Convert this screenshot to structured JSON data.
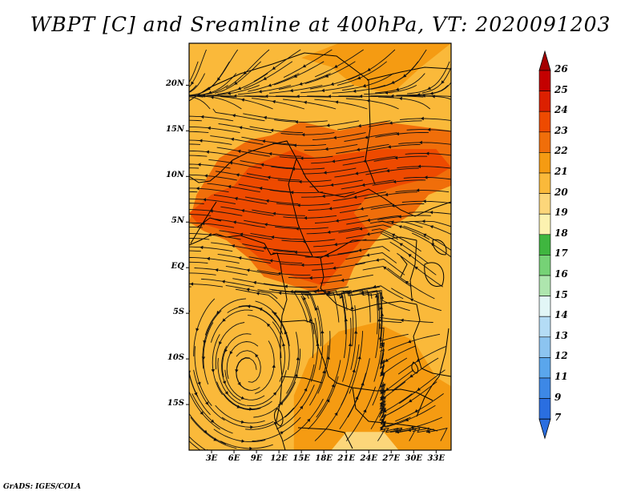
{
  "title": "WBPT [C] and Sreamline at 400hPa, VT: 2020091203",
  "credit": "GrADS: IGES/COLA",
  "axes": {
    "y_ticks": [
      {
        "label": "20N",
        "lat": 20
      },
      {
        "label": "15N",
        "lat": 15
      },
      {
        "label": "10N",
        "lat": 10
      },
      {
        "label": "5N",
        "lat": 5
      },
      {
        "label": "EQ",
        "lat": 0
      },
      {
        "label": "5S",
        "lat": -5
      },
      {
        "label": "10S",
        "lat": -10
      },
      {
        "label": "15S",
        "lat": -15
      }
    ],
    "x_ticks": [
      {
        "label": "3E",
        "lon": 3
      },
      {
        "label": "6E",
        "lon": 6
      },
      {
        "label": "9E",
        "lon": 9
      },
      {
        "label": "12E",
        "lon": 12
      },
      {
        "label": "15E",
        "lon": 15
      },
      {
        "label": "18E",
        "lon": 18
      },
      {
        "label": "21E",
        "lon": 21
      },
      {
        "label": "24E",
        "lon": 24
      },
      {
        "label": "27E",
        "lon": 27
      },
      {
        "label": "30E",
        "lon": 30
      },
      {
        "label": "33E",
        "lon": 33
      }
    ],
    "lon_range": [
      0,
      35
    ],
    "lat_range": [
      -20,
      24.6
    ]
  },
  "colorbar": {
    "levels": [
      {
        "label": "26",
        "color": "#a50000"
      },
      {
        "label": "25",
        "color": "#c40000"
      },
      {
        "label": "24",
        "color": "#dc2000"
      },
      {
        "label": "23",
        "color": "#ee4a00"
      },
      {
        "label": "22",
        "color": "#f06e0a"
      },
      {
        "label": "21",
        "color": "#f59b12"
      },
      {
        "label": "20",
        "color": "#fab93a"
      },
      {
        "label": "19",
        "color": "#fcd67a"
      },
      {
        "label": "18",
        "color": "#fcf2b0"
      },
      {
        "label": "17",
        "color": "#3fb63f"
      },
      {
        "label": "16",
        "color": "#76d276"
      },
      {
        "label": "15",
        "color": "#aee6ae"
      },
      {
        "label": "14",
        "color": "#e2f6f6"
      },
      {
        "label": "13",
        "color": "#b4dcf5"
      },
      {
        "label": "12",
        "color": "#8cc4f0"
      },
      {
        "label": "11",
        "color": "#5aa6ec"
      },
      {
        "label": "9",
        "color": "#3d88e6"
      },
      {
        "label": "7",
        "color": "#2a6ee0"
      }
    ],
    "bottom_color": "#2a6ee0"
  },
  "field": {
    "base_color": "#fab93a",
    "regions": [
      {
        "value": 22,
        "color": "#f06e0a",
        "polygon": [
          [
            1,
            8
          ],
          [
            4,
            12
          ],
          [
            8,
            14
          ],
          [
            11,
            14.5
          ],
          [
            15,
            16
          ],
          [
            20,
            15
          ],
          [
            26,
            16
          ],
          [
            35,
            15
          ],
          [
            35,
            9
          ],
          [
            32,
            8
          ],
          [
            30,
            6
          ],
          [
            26,
            4
          ],
          [
            24,
            2
          ],
          [
            22,
            0
          ],
          [
            21,
            -2
          ],
          [
            18,
            -3
          ],
          [
            14,
            -2
          ],
          [
            10,
            -1
          ],
          [
            8,
            1
          ],
          [
            5,
            3
          ],
          [
            2,
            4
          ],
          [
            0,
            5
          ]
        ]
      },
      {
        "value": 23,
        "color": "#ee4a00",
        "polygon": [
          [
            8,
            11
          ],
          [
            11,
            12
          ],
          [
            14,
            13
          ],
          [
            17,
            12
          ],
          [
            21,
            12.5
          ],
          [
            26,
            13
          ],
          [
            33,
            13
          ],
          [
            35,
            11
          ],
          [
            33,
            10
          ],
          [
            28,
            9
          ],
          [
            24,
            8
          ],
          [
            22,
            6
          ],
          [
            24,
            4
          ],
          [
            22,
            2
          ],
          [
            20,
            0
          ],
          [
            18,
            -2
          ],
          [
            14,
            -1
          ],
          [
            11,
            0
          ],
          [
            8,
            2
          ],
          [
            5,
            4
          ],
          [
            1,
            5
          ],
          [
            0,
            6
          ],
          [
            3,
            8
          ],
          [
            6,
            9
          ]
        ]
      },
      {
        "value": 21,
        "color": "#f59b12",
        "polygon": [
          [
            14,
            -20
          ],
          [
            14,
            -14
          ],
          [
            16,
            -10
          ],
          [
            20,
            -7
          ],
          [
            25,
            -6
          ],
          [
            30,
            -8
          ],
          [
            33,
            -12
          ],
          [
            35,
            -13
          ],
          [
            35,
            -20
          ]
        ]
      },
      {
        "value": 21,
        "color": "#f59b12",
        "polygon": [
          [
            15,
            23
          ],
          [
            19,
            22
          ],
          [
            22,
            20
          ],
          [
            27,
            19
          ],
          [
            31,
            22
          ],
          [
            35,
            24.6
          ],
          [
            20,
            24.6
          ]
        ]
      },
      {
        "value": 19,
        "color": "#fcd67a",
        "polygon": [
          [
            19,
            -20
          ],
          [
            21,
            -18
          ],
          [
            26,
            -18
          ],
          [
            28,
            -20
          ]
        ]
      }
    ]
  }
}
